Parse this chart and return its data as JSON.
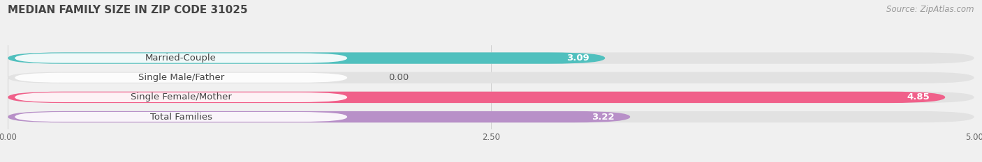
{
  "title": "MEDIAN FAMILY SIZE IN ZIP CODE 31025",
  "source": "Source: ZipAtlas.com",
  "categories": [
    "Married-Couple",
    "Single Male/Father",
    "Single Female/Mother",
    "Total Families"
  ],
  "values": [
    3.09,
    0.0,
    4.85,
    3.22
  ],
  "bar_colors": [
    "#50C0BE",
    "#AABCE8",
    "#F0608A",
    "#B890C8"
  ],
  "bar_height": 0.58,
  "xlim": [
    0,
    5.0
  ],
  "xtick_labels": [
    "0.00",
    "2.50",
    "5.00"
  ],
  "xtick_values": [
    0.0,
    2.5,
    5.0
  ],
  "background_color": "#f0f0f0",
  "bar_bg_color": "#e2e2e2",
  "label_fontsize": 9.5,
  "value_fontsize": 9.5,
  "title_fontsize": 11,
  "source_fontsize": 8.5,
  "label_bg_color": "#ffffff",
  "label_text_color": "#444444"
}
